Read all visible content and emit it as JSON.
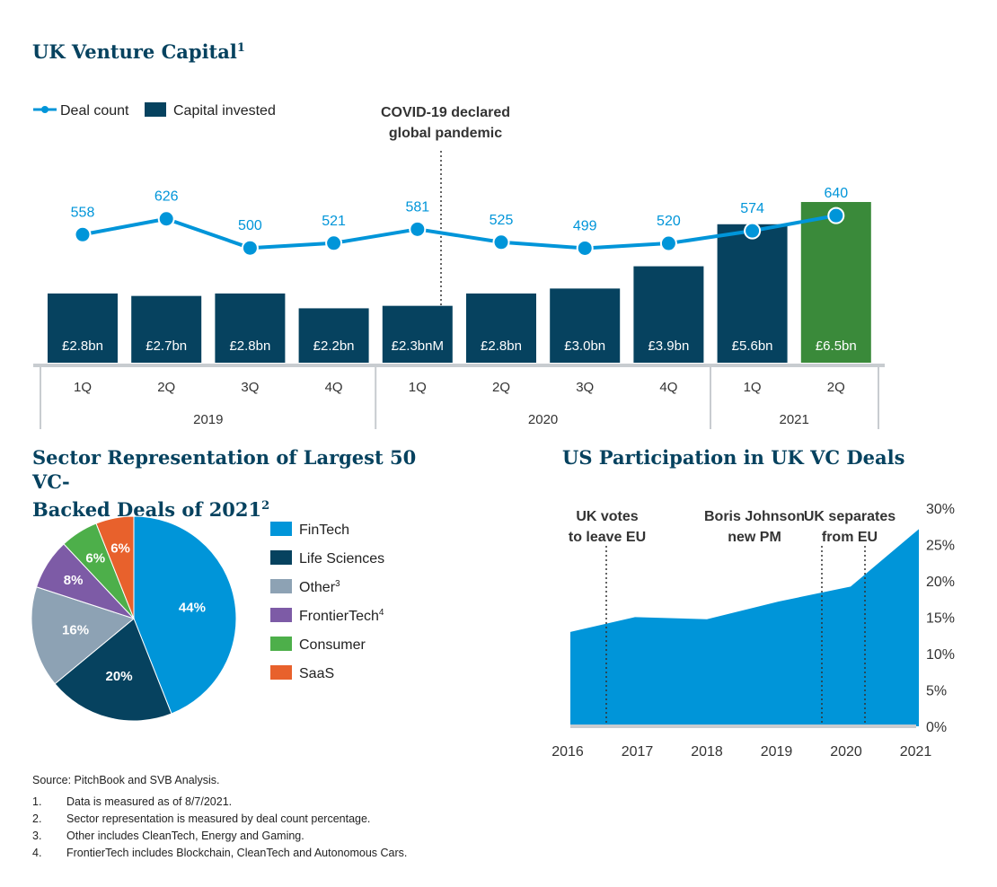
{
  "chart_data": [
    {
      "type": "bar+line",
      "title": "UK Venture Capital",
      "title_sup": "1",
      "legend": [
        "Deal count",
        "Capital invested"
      ],
      "categories": [
        "1Q",
        "2Q",
        "3Q",
        "4Q",
        "1Q",
        "2Q",
        "3Q",
        "4Q",
        "1Q",
        "2Q"
      ],
      "years": [
        {
          "label": "2019",
          "span": 4
        },
        {
          "label": "2020",
          "span": 4
        },
        {
          "label": "2021",
          "span": 2
        }
      ],
      "series": [
        {
          "name": "Capital invested",
          "kind": "bar",
          "values": [
            2.8,
            2.7,
            2.8,
            2.2,
            2.3,
            2.8,
            3.0,
            3.9,
            5.6,
            6.5
          ],
          "labels": [
            "£2.8bn",
            "£2.7bn",
            "£2.8bn",
            "£2.2bn",
            "£2.3bnM",
            "£2.8bn",
            "£3.0bn",
            "£3.9bn",
            "£5.6bn",
            "£6.5bn"
          ]
        },
        {
          "name": "Deal count",
          "kind": "line",
          "values": [
            558,
            626,
            500,
            521,
            581,
            525,
            499,
            520,
            574,
            640
          ]
        }
      ],
      "annotation": {
        "text_lines": [
          "COVID-19 declared",
          "global pandemic"
        ],
        "between": [
          "4Q 2019",
          "1Q 2020"
        ]
      },
      "highlight_index": 9
    },
    {
      "type": "pie",
      "title_lines": [
        "Sector Representation of Largest 50 VC-",
        "Backed Deals of 2021"
      ],
      "title_sup": "2",
      "slices": [
        {
          "name": "FinTech",
          "sup": "",
          "value": 44,
          "label": "44%",
          "color": "#0095d9"
        },
        {
          "name": "Life Sciences",
          "sup": "",
          "value": 20,
          "label": "20%",
          "color": "#06425f"
        },
        {
          "name": "Other",
          "sup": "3",
          "value": 16,
          "label": "16%",
          "color": "#8da2b4"
        },
        {
          "name": "FrontierTech",
          "sup": "4",
          "value": 8,
          "label": "8%",
          "color": "#7d5ba6"
        },
        {
          "name": "Consumer",
          "sup": "",
          "value": 6,
          "label": "6%",
          "color": "#4daf4a"
        },
        {
          "name": "SaaS",
          "sup": "",
          "value": 6,
          "label": "6%",
          "color": "#e8612c"
        }
      ]
    },
    {
      "type": "area",
      "title": "US Participation in UK VC Deals",
      "x_ticks": [
        "2016",
        "2017",
        "2018",
        "2019",
        "2020",
        "2021"
      ],
      "y_ticks": [
        "30%",
        "25%",
        "20%",
        "15%",
        "10%",
        "5%",
        "0%"
      ],
      "ylim": [
        0,
        30
      ],
      "x": [
        2016,
        2016.9,
        2017.9,
        2018.9,
        2019.9,
        2020.85
      ],
      "values": [
        13.3,
        15.4,
        15.1,
        17.6,
        19.7,
        27.8
      ],
      "events": [
        {
          "text_lines": [
            "UK votes",
            "to leave EU"
          ],
          "x": 2016.5
        },
        {
          "text_lines": [
            "Boris Johnson",
            "new PM"
          ],
          "x": 2019.5
        },
        {
          "text_lines": [
            "UK separates",
            "from EU"
          ],
          "x": 2020.1
        }
      ]
    }
  ],
  "colors": {
    "navy": "#06425f",
    "blue": "#0095d9",
    "green": "#3a8a3a",
    "axis": "#c8ccd0"
  },
  "footnotes": {
    "source": "Source: PitchBook and SVB Analysis.",
    "notes": [
      {
        "num": "1.",
        "text": "Data is measured as of 8/7/2021."
      },
      {
        "num": "2.",
        "text": "Sector representation is measured by deal count percentage."
      },
      {
        "num": "3.",
        "text": "Other includes CleanTech, Energy and Gaming."
      },
      {
        "num": "4.",
        "text": "FrontierTech includes Blockchain, CleanTech and Autonomous Cars."
      }
    ]
  }
}
